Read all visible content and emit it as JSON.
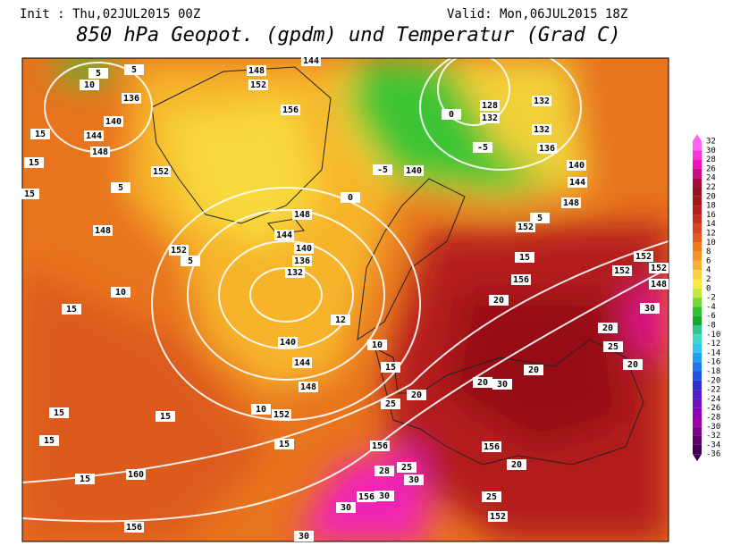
{
  "header": {
    "init": "Init : Thu,02JUL2015 00Z",
    "valid": "Valid: Mon,06JUL2015 18Z",
    "title": "850 hPa Geopot. (gpdm) und Temperatur (Grad C)"
  },
  "colorbar": {
    "ticks": [
      32,
      30,
      28,
      26,
      24,
      22,
      20,
      18,
      16,
      14,
      12,
      10,
      8,
      6,
      4,
      2,
      0,
      -2,
      -4,
      -6,
      -8,
      -10,
      -12,
      -14,
      -16,
      -18,
      -20,
      -22,
      -24,
      -26,
      -28,
      -30,
      -32,
      -34,
      -36
    ],
    "colors": [
      "#ff66ee",
      "#ff33dd",
      "#ee11bb",
      "#cc0a88",
      "#aa0a44",
      "#99101e",
      "#a51818",
      "#b82020",
      "#c83020",
      "#d84522",
      "#e65a20",
      "#f07820",
      "#f49428",
      "#f8b030",
      "#fcd040",
      "#f8e840",
      "#c8e840",
      "#78d838",
      "#30c030",
      "#10a830",
      "#30c890",
      "#40d8c8",
      "#30c8f0",
      "#20a0f0",
      "#2078e8",
      "#2050e0",
      "#3030d0",
      "#5020c8",
      "#7010c0",
      "#9000b8",
      "#a000a8",
      "#800090",
      "#600070",
      "#400050"
    ]
  },
  "map": {
    "labels": [
      10,
      136,
      140,
      144,
      148,
      15,
      15,
      15,
      152,
      5,
      148,
      10,
      15,
      152,
      5,
      148,
      152,
      156,
      144,
      5,
      5,
      144,
      148,
      140,
      136,
      132,
      140,
      144,
      148,
      152,
      10,
      15,
      15,
      15,
      15,
      15,
      160,
      156,
      12,
      10,
      15,
      -5,
      140,
      0,
      0,
      128,
      132,
      -5,
      132,
      132,
      136,
      140,
      144,
      148,
      152,
      5,
      15,
      152,
      152,
      152,
      148,
      156,
      20,
      30,
      20,
      25,
      20,
      20,
      20,
      30,
      20,
      25,
      156,
      28,
      25,
      30,
      156,
      20,
      25,
      152,
      30,
      30,
      156,
      30
    ]
  }
}
